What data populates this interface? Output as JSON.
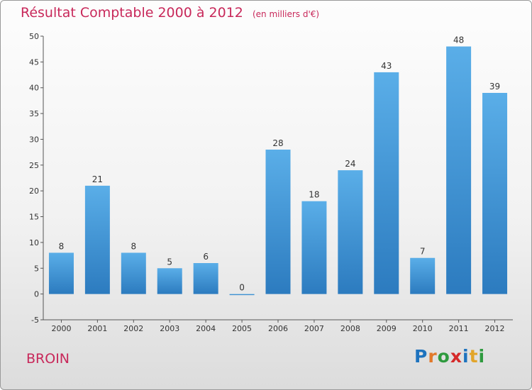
{
  "chart_data": {
    "type": "bar",
    "title": "Résultat Comptable 2000 à 2012",
    "subtitle": "(en milliers d'€)",
    "categories": [
      "2000",
      "2001",
      "2002",
      "2003",
      "2004",
      "2005",
      "2006",
      "2007",
      "2008",
      "2009",
      "2010",
      "2011",
      "2012"
    ],
    "values": [
      8,
      21,
      8,
      5,
      6,
      0,
      28,
      18,
      24,
      43,
      7,
      48,
      39
    ],
    "ylim": [
      -5,
      50
    ],
    "yticks": [
      -5,
      0,
      5,
      10,
      15,
      20,
      25,
      30,
      35,
      40,
      45,
      50
    ],
    "xlabel": "",
    "ylabel": "",
    "grid": false,
    "bar_color_top": "#5aaee8",
    "bar_color_bottom": "#2c7bbf"
  },
  "footer": {
    "place": "BROIN",
    "logo_letters": [
      {
        "ch": "P",
        "color": "#1e73be"
      },
      {
        "ch": "r",
        "color": "#e2792a"
      },
      {
        "ch": "o",
        "color": "#2e9a3e"
      },
      {
        "ch": "x",
        "color": "#d52a2a"
      },
      {
        "ch": "i",
        "color": "#1e73be"
      },
      {
        "ch": "t",
        "color": "#e2a52a"
      },
      {
        "ch": "i",
        "color": "#2e9a3e"
      }
    ]
  }
}
